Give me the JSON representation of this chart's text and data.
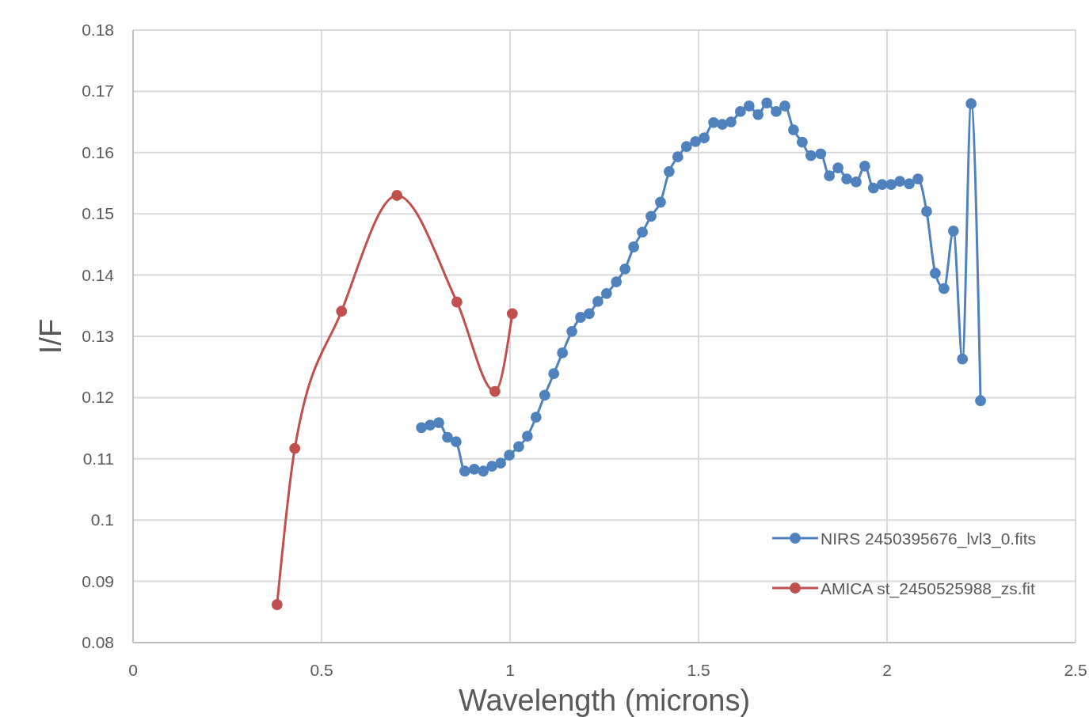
{
  "chart_data": {
    "type": "line",
    "xlabel": "Wavelength (microns)",
    "ylabel": "I/F",
    "xlim": [
      0,
      2.5
    ],
    "xticks": [
      0,
      0.5,
      1,
      1.5,
      2,
      2.5
    ],
    "ylim": [
      0.08,
      0.18
    ],
    "yticks": [
      {
        "value": 0.08,
        "label": "0.08"
      },
      {
        "value": 0.09,
        "label": "0.09"
      },
      {
        "value": 0.1,
        "label": "0.1"
      },
      {
        "value": 0.11,
        "label": "0.11"
      },
      {
        "value": 0.12,
        "label": "0.12"
      },
      {
        "value": 0.13,
        "label": "0.13"
      },
      {
        "value": 0.14,
        "label": "0.14"
      },
      {
        "value": 0.15,
        "label": "0.15"
      },
      {
        "value": 0.16,
        "label": "0.16"
      },
      {
        "value": 0.17,
        "label": "0.17"
      },
      {
        "value": 0.18,
        "label": "0.18"
      }
    ],
    "grid": true,
    "legend": "bottom right",
    "marker": "circle",
    "series": [
      {
        "name": "NIRS 2450395676_lvl3_0.fits",
        "color": "#4f81bd",
        "x": [
          0.765,
          0.788,
          0.811,
          0.834,
          0.857,
          0.88,
          0.905,
          0.929,
          0.952,
          0.975,
          0.998,
          1.023,
          1.046,
          1.069,
          1.092,
          1.116,
          1.139,
          1.164,
          1.187,
          1.21,
          1.233,
          1.256,
          1.282,
          1.305,
          1.328,
          1.351,
          1.374,
          1.399,
          1.422,
          1.445,
          1.468,
          1.492,
          1.515,
          1.54,
          1.563,
          1.586,
          1.611,
          1.634,
          1.658,
          1.681,
          1.706,
          1.729,
          1.752,
          1.775,
          1.798,
          1.824,
          1.847,
          1.87,
          1.893,
          1.918,
          1.941,
          1.964,
          1.987,
          2.011,
          2.034,
          2.059,
          2.082,
          2.105,
          2.128,
          2.151,
          2.176,
          2.2,
          2.223,
          2.248
        ],
        "values": [
          0.1151,
          0.1155,
          0.1159,
          0.1135,
          0.1128,
          0.108,
          0.1083,
          0.108,
          0.1088,
          0.1093,
          0.1106,
          0.112,
          0.1137,
          0.1168,
          0.1204,
          0.1239,
          0.1273,
          0.1308,
          0.1331,
          0.1337,
          0.1357,
          0.137,
          0.1389,
          0.141,
          0.1446,
          0.147,
          0.1496,
          0.1519,
          0.1569,
          0.1593,
          0.161,
          0.1618,
          0.1624,
          0.1649,
          0.1646,
          0.165,
          0.1667,
          0.1676,
          0.1662,
          0.1681,
          0.1667,
          0.1676,
          0.1637,
          0.1617,
          0.1595,
          0.1598,
          0.1562,
          0.1575,
          0.1557,
          0.1552,
          0.1578,
          0.1542,
          0.1548,
          0.1548,
          0.1553,
          0.1549,
          0.1557,
          0.1504,
          0.1403,
          0.1378,
          0.1472,
          0.1263,
          0.168,
          0.1195
        ]
      },
      {
        "name": "AMICA st_2450525988_zs.fit",
        "color": "#c0504d",
        "x": [
          0.382,
          0.429,
          0.553,
          0.7,
          0.859,
          0.96,
          1.006
        ],
        "values": [
          0.0862,
          0.1117,
          0.1341,
          0.153,
          0.1356,
          0.121,
          0.1337
        ]
      }
    ]
  }
}
